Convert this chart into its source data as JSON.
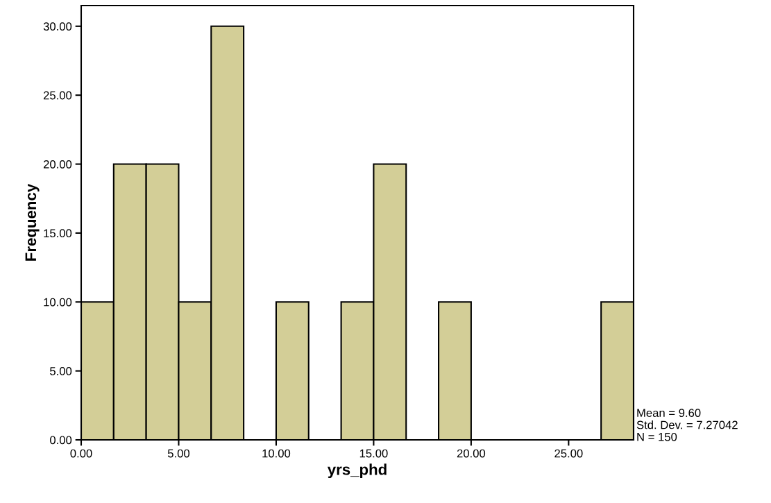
{
  "chart_data": {
    "type": "histogram",
    "xlabel": "yrs_phd",
    "ylabel": "Frequency",
    "bins": [
      0,
      1.6667,
      3.3333,
      5,
      6.6667,
      8.3333,
      10,
      11.6667,
      13.3333,
      15,
      16.6667,
      18.3333,
      20,
      21.6667,
      23.3333,
      25,
      26.6667,
      28.3333
    ],
    "values": [
      10,
      20,
      20,
      10,
      30,
      0,
      10,
      0,
      10,
      20,
      0,
      10,
      0,
      0,
      0,
      0,
      10
    ],
    "color": "#d3ce97",
    "xlim": [
      0,
      28.3333
    ],
    "ylim": [
      0,
      31.5
    ],
    "xticks": [
      {
        "value": 0,
        "label": "0.00"
      },
      {
        "value": 5,
        "label": "5.00"
      },
      {
        "value": 10,
        "label": "10.00"
      },
      {
        "value": 15,
        "label": "15.00"
      },
      {
        "value": 20,
        "label": "20.00"
      },
      {
        "value": 25,
        "label": "25.00"
      }
    ],
    "yticks": [
      {
        "value": 0,
        "label": "0.00"
      },
      {
        "value": 5,
        "label": "5.00"
      },
      {
        "value": 10,
        "label": "10.00"
      },
      {
        "value": 15,
        "label": "15.00"
      },
      {
        "value": 20,
        "label": "20.00"
      },
      {
        "value": 25,
        "label": "25.00"
      },
      {
        "value": 30,
        "label": "30.00"
      }
    ],
    "annotations": [
      "Mean = 9.60\nStd. Dev. = 7.27042\nN = 150"
    ],
    "grid": false
  }
}
